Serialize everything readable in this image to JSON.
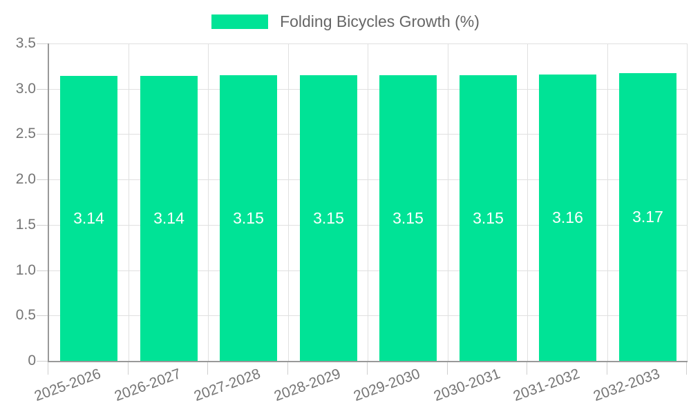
{
  "chart_data": {
    "type": "bar",
    "title": "Folding Bicycles Growth (%)",
    "categories": [
      "2025-2026",
      "2026-2027",
      "2027-2028",
      "2028-2029",
      "2029-2030",
      "2030-2031",
      "2031-2032",
      "2032-2033"
    ],
    "values": [
      3.14,
      3.14,
      3.15,
      3.15,
      3.15,
      3.15,
      3.16,
      3.17
    ],
    "value_labels": [
      "3.14",
      "3.14",
      "3.15",
      "3.15",
      "3.15",
      "3.15",
      "3.16",
      "3.17"
    ],
    "xlabel": "",
    "ylabel": "",
    "ylim": [
      0,
      3.5
    ],
    "yticks": [
      0,
      0.5,
      1.0,
      1.5,
      2.0,
      2.5,
      3.0,
      3.5
    ],
    "ytick_labels": [
      "0",
      "0.5",
      "1.0",
      "1.5",
      "2.0",
      "2.5",
      "3.0",
      "3.5"
    ],
    "grid": true,
    "legend": {
      "position": "top-center",
      "label": "Folding Bicycles Growth (%)"
    },
    "x_label_rotation_deg": -20,
    "colors": {
      "bar": "#00E396",
      "grid": "#e0e0e0",
      "tick": "#cfcfcf",
      "axis": "#999999",
      "axis_label": "#757575",
      "value_label": "#ffffff",
      "legend_text": "#666666",
      "background": "#ffffff"
    }
  }
}
